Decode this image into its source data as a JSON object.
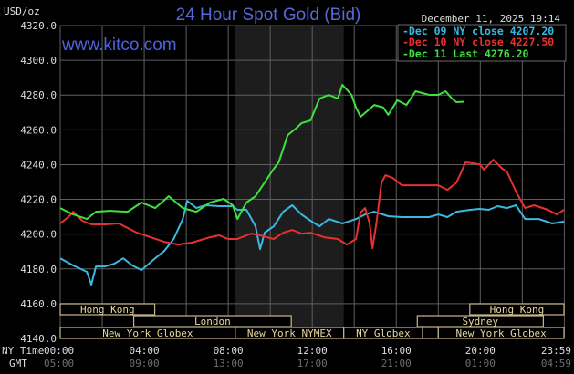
{
  "chart_data": {
    "type": "line",
    "title": "24 Hour Spot Gold (Bid)",
    "ylabel": "USD/oz",
    "watermark": "www.kitco.com",
    "timestamp": "December 11, 2025 19:14",
    "ylim": [
      4140,
      4320
    ],
    "yticks": [
      "4320.0",
      "4300.0",
      "4280.0",
      "4260.0",
      "4240.0",
      "4220.0",
      "4200.0",
      "4180.0",
      "4160.0",
      "4140.0"
    ],
    "xlim": [
      "00:00",
      "23:59"
    ],
    "x_row_labels": {
      "ny": "NY Time",
      "gmt": "GMT"
    },
    "xticks_ny": [
      "00:00",
      "04:00",
      "08:00",
      "12:00",
      "16:00",
      "20:00",
      "23:59"
    ],
    "xticks_gmt": [
      "05:00",
      "09:00",
      "13:00",
      "17:00",
      "21:00",
      "01:00",
      "04:59"
    ],
    "grid": true,
    "legend_position": "top-right",
    "shaded_period": [
      "08:20",
      "13:30"
    ],
    "series": [
      {
        "name": "Dec 09 NY close",
        "label_value": "4207.20",
        "color": "#3cb8e0",
        "points": [
          [
            "00:00",
            4186.1
          ],
          [
            "00:37",
            4182.0
          ],
          [
            "01:16",
            4178.3
          ],
          [
            "01:29",
            4170.9
          ],
          [
            "01:42",
            4181.4
          ],
          [
            "02:08",
            4181.4
          ],
          [
            "02:34",
            4183.0
          ],
          [
            "03:00",
            4186.1
          ],
          [
            "03:26",
            4182.0
          ],
          [
            "03:52",
            4179.3
          ],
          [
            "04:31",
            4186.1
          ],
          [
            "04:57",
            4190.3
          ],
          [
            "05:24",
            4197.2
          ],
          [
            "05:50",
            4208.7
          ],
          [
            "06:03",
            4219.2
          ],
          [
            "06:29",
            4215.0
          ],
          [
            "06:55",
            4216.6
          ],
          [
            "07:34",
            4216.1
          ],
          [
            "08:13",
            4216.1
          ],
          [
            "08:26",
            4214.0
          ],
          [
            "08:52",
            4214.0
          ],
          [
            "09:18",
            4204.5
          ],
          [
            "09:31",
            4191.4
          ],
          [
            "09:44",
            4200.8
          ],
          [
            "10:10",
            4204.5
          ],
          [
            "10:37",
            4212.9
          ],
          [
            "11:03",
            4216.6
          ],
          [
            "11:29",
            4211.3
          ],
          [
            "11:55",
            4207.7
          ],
          [
            "12:21",
            4204.5
          ],
          [
            "12:47",
            4208.7
          ],
          [
            "13:26",
            4206.1
          ],
          [
            "14:05",
            4208.7
          ],
          [
            "14:31",
            4211.3
          ],
          [
            "14:57",
            4212.9
          ],
          [
            "15:37",
            4210.3
          ],
          [
            "16:16",
            4209.8
          ],
          [
            "16:55",
            4209.8
          ],
          [
            "17:34",
            4209.8
          ],
          [
            "18:00",
            4211.3
          ],
          [
            "18:26",
            4209.8
          ],
          [
            "18:52",
            4212.9
          ],
          [
            "19:31",
            4214.0
          ],
          [
            "19:58",
            4214.5
          ],
          [
            "20:24",
            4214.0
          ],
          [
            "20:50",
            4216.1
          ],
          [
            "21:16",
            4215.0
          ],
          [
            "21:42",
            4216.6
          ],
          [
            "22:08",
            4208.7
          ],
          [
            "22:47",
            4208.7
          ],
          [
            "23:26",
            4206.1
          ],
          [
            "23:59",
            4207.2
          ]
        ]
      },
      {
        "name": "Dec 10 NY close",
        "label_value": "4227.50",
        "color": "#e83030",
        "points": [
          [
            "00:00",
            4206.1
          ],
          [
            "00:23",
            4209.8
          ],
          [
            "00:37",
            4212.9
          ],
          [
            "01:03",
            4207.7
          ],
          [
            "01:29",
            4205.6
          ],
          [
            "02:08",
            4205.6
          ],
          [
            "02:47",
            4206.1
          ],
          [
            "03:13",
            4203.5
          ],
          [
            "03:39",
            4200.8
          ],
          [
            "04:18",
            4198.2
          ],
          [
            "04:57",
            4195.6
          ],
          [
            "05:37",
            4194.0
          ],
          [
            "06:16",
            4195.1
          ],
          [
            "07:08",
            4198.2
          ],
          [
            "07:34",
            4199.3
          ],
          [
            "08:00",
            4197.2
          ],
          [
            "08:26",
            4197.2
          ],
          [
            "09:05",
            4200.3
          ],
          [
            "09:31",
            4199.3
          ],
          [
            "10:10",
            4197.2
          ],
          [
            "10:37",
            4200.8
          ],
          [
            "11:03",
            4202.4
          ],
          [
            "11:29",
            4200.3
          ],
          [
            "11:55",
            4200.8
          ],
          [
            "12:34",
            4198.2
          ],
          [
            "13:13",
            4197.2
          ],
          [
            "13:39",
            4194.0
          ],
          [
            "14:05",
            4197.2
          ],
          [
            "14:18",
            4212.4
          ],
          [
            "14:31",
            4215.0
          ],
          [
            "14:44",
            4206.1
          ],
          [
            "14:52",
            4191.9
          ],
          [
            "15:03",
            4206.1
          ],
          [
            "15:18",
            4229.7
          ],
          [
            "15:29",
            4233.9
          ],
          [
            "15:50",
            4232.3
          ],
          [
            "16:16",
            4228.1
          ],
          [
            "17:08",
            4228.1
          ],
          [
            "18:00",
            4228.1
          ],
          [
            "18:26",
            4225.5
          ],
          [
            "18:52",
            4229.7
          ],
          [
            "19:18",
            4241.3
          ],
          [
            "19:58",
            4240.2
          ],
          [
            "20:11",
            4237.1
          ],
          [
            "20:37",
            4242.8
          ],
          [
            "21:03",
            4237.6
          ],
          [
            "21:16",
            4236.0
          ],
          [
            "21:42",
            4224.5
          ],
          [
            "22:08",
            4215.0
          ],
          [
            "22:34",
            4216.6
          ],
          [
            "23:13",
            4214.0
          ],
          [
            "23:39",
            4211.3
          ],
          [
            "23:59",
            4214.0
          ]
        ]
      },
      {
        "name": "Dec 11 Last",
        "label_value": "4276.20",
        "color": "#40e040",
        "points": [
          [
            "00:00",
            4215.0
          ],
          [
            "00:37",
            4211.3
          ],
          [
            "01:16",
            4208.7
          ],
          [
            "01:42",
            4212.9
          ],
          [
            "02:21",
            4213.4
          ],
          [
            "03:13",
            4212.9
          ],
          [
            "03:52",
            4218.2
          ],
          [
            "04:31",
            4215.0
          ],
          [
            "05:10",
            4221.8
          ],
          [
            "05:50",
            4215.0
          ],
          [
            "06:29",
            4212.9
          ],
          [
            "07:08",
            4218.2
          ],
          [
            "07:47",
            4220.3
          ],
          [
            "08:13",
            4216.6
          ],
          [
            "08:26",
            4208.7
          ],
          [
            "08:52",
            4218.2
          ],
          [
            "09:18",
            4221.8
          ],
          [
            "09:44",
            4229.7
          ],
          [
            "10:10",
            4237.6
          ],
          [
            "10:24",
            4241.3
          ],
          [
            "10:50",
            4257.0
          ],
          [
            "11:16",
            4261.2
          ],
          [
            "11:29",
            4263.8
          ],
          [
            "11:55",
            4265.4
          ],
          [
            "12:21",
            4278.0
          ],
          [
            "12:47",
            4280.1
          ],
          [
            "13:13",
            4278.0
          ],
          [
            "13:26",
            4285.9
          ],
          [
            "13:52",
            4280.1
          ],
          [
            "14:05",
            4272.8
          ],
          [
            "14:18",
            4267.5
          ],
          [
            "14:57",
            4274.3
          ],
          [
            "15:23",
            4272.8
          ],
          [
            "15:37",
            4268.6
          ],
          [
            "16:03",
            4277.0
          ],
          [
            "16:29",
            4274.3
          ],
          [
            "16:55",
            4282.2
          ],
          [
            "17:34",
            4280.1
          ],
          [
            "18:00",
            4280.1
          ],
          [
            "18:21",
            4282.2
          ],
          [
            "18:39",
            4278.0
          ],
          [
            "18:52",
            4275.9
          ],
          [
            "19:14",
            4276.2
          ]
        ]
      }
    ],
    "sessions": [
      {
        "label": "Hong Kong",
        "row": 0,
        "start": "00:00",
        "end": "04:30"
      },
      {
        "label": "Hong Kong",
        "row": 0,
        "start": "19:30",
        "end": "23:59"
      },
      {
        "label": "London",
        "row": 1,
        "start": "03:30",
        "end": "11:00"
      },
      {
        "label": "Sydney",
        "row": 1,
        "start": "17:00",
        "end": "23:00"
      },
      {
        "label": "New York Globex",
        "row": 2,
        "start": "00:00",
        "end": "08:20"
      },
      {
        "label": "New York NYMEX",
        "row": 2,
        "start": "08:20",
        "end": "13:30"
      },
      {
        "label": "NY Globex",
        "row": 2,
        "start": "13:30",
        "end": "17:15"
      },
      {
        "label": "",
        "row": 2,
        "start": "17:15",
        "end": "18:00"
      },
      {
        "label": "New York Globex",
        "row": 2,
        "start": "18:00",
        "end": "23:59"
      }
    ]
  }
}
